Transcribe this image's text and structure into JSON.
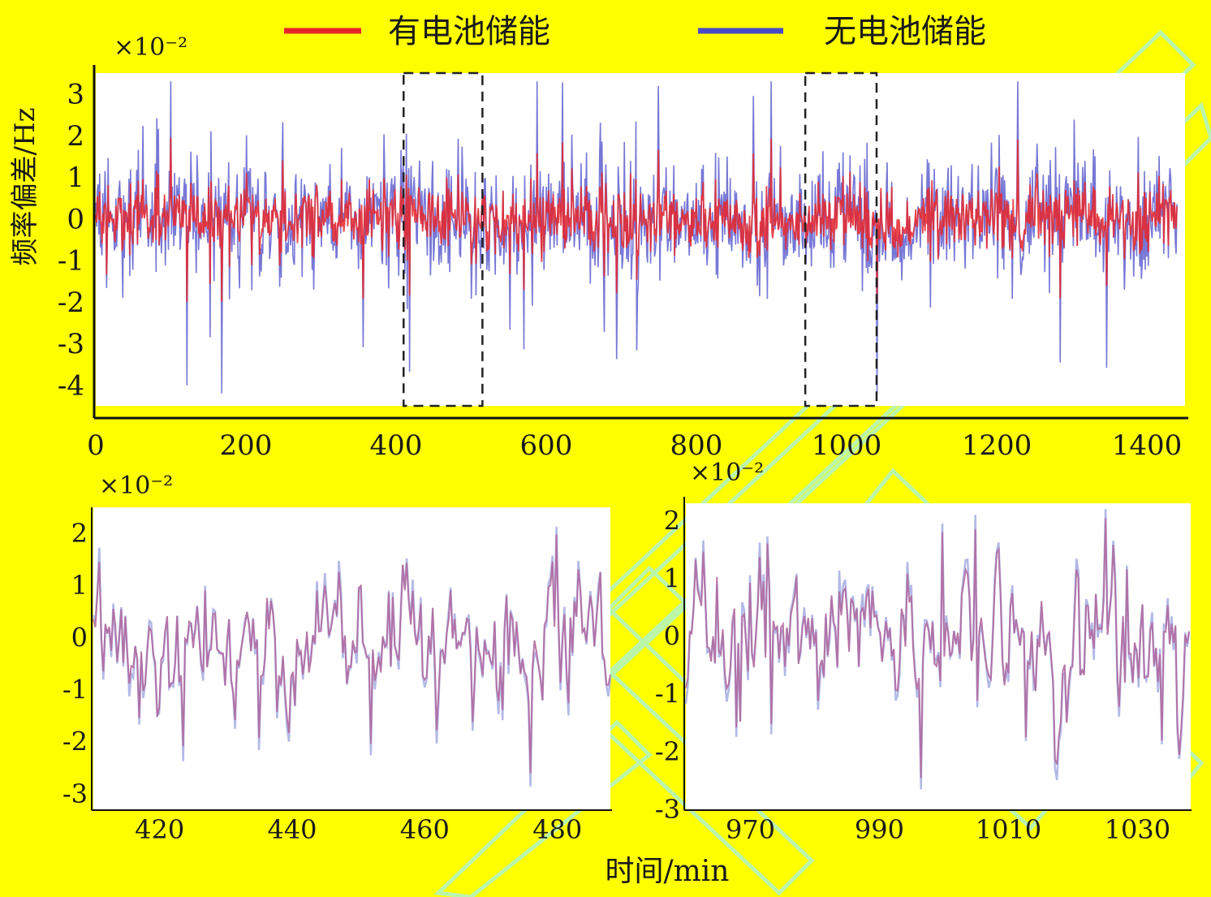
{
  "legend": {
    "with_battery": "有电池储能",
    "without_battery": "无电池储能"
  },
  "colors": {
    "background": "#ffff00",
    "with_battery": "#e8262a",
    "without_battery": "#4a4ac8",
    "zoom_line": "#b06aa0",
    "watermark": "#aef5c8"
  },
  "axes": {
    "ylabel": "频率偏差/Hz",
    "xlabel": "时间/min",
    "scale_note": "×10⁻²"
  },
  "chart_data": [
    {
      "type": "line",
      "panel": "overview",
      "x_range": [
        0,
        1440
      ],
      "ylim": [
        -4.5,
        3.5
      ],
      "x_ticks": [
        0,
        200,
        400,
        600,
        800,
        1000,
        1200,
        1400
      ],
      "y_ticks": [
        3,
        2,
        1,
        0,
        -1,
        -2,
        -3,
        -4
      ],
      "y_scale": 0.01,
      "highlight_windows": [
        [
          410,
          515
        ],
        [
          945,
          1040
        ]
      ],
      "series": [
        {
          "name": "有电池储能",
          "std": 0.32,
          "spikes": 0.8,
          "color_key": "with_battery"
        },
        {
          "name": "无电池储能",
          "std": 0.7,
          "spikes": 2.6,
          "color_key": "without_battery"
        }
      ],
      "legend_position": "top"
    },
    {
      "type": "line",
      "panel": "zoom-left",
      "x_range": [
        410,
        488
      ],
      "ylim": [
        -3.3,
        2.5
      ],
      "x_ticks": [
        420,
        440,
        460,
        480
      ],
      "y_ticks": [
        2,
        1,
        0,
        -1,
        -2,
        -3
      ],
      "y_scale": 0.01
    },
    {
      "type": "line",
      "panel": "zoom-right",
      "x_range": [
        960,
        1038
      ],
      "ylim": [
        -3,
        2.3
      ],
      "x_ticks": [
        970,
        990,
        1010,
        1030
      ],
      "y_ticks": [
        2,
        1,
        0,
        -1,
        -2,
        -3
      ],
      "y_scale": 0.01
    }
  ]
}
